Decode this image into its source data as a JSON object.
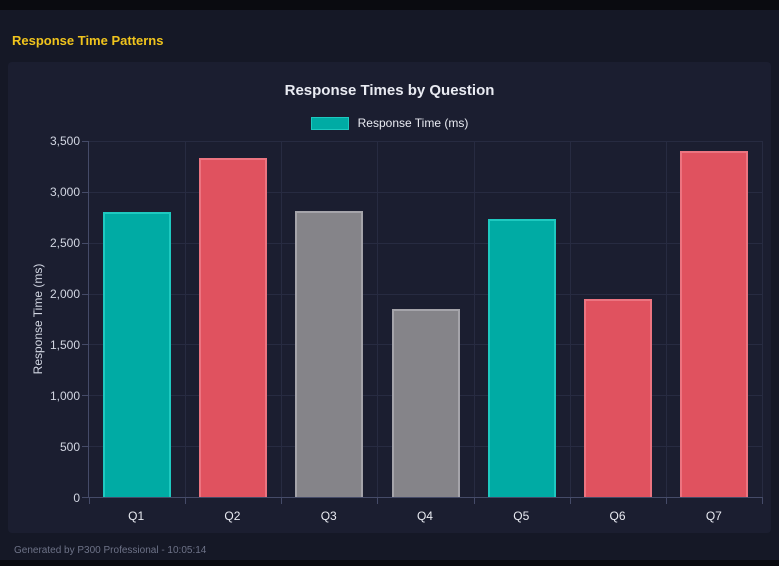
{
  "header": {
    "title": "Response Time Patterns"
  },
  "chart": {
    "title": "Response Times by Question",
    "legend_label": "Response Time (ms)",
    "y_axis_title": "Response Time (ms)"
  },
  "chart_data": {
    "type": "bar",
    "title": "Response Times by Question",
    "categories": [
      "Q1",
      "Q2",
      "Q3",
      "Q4",
      "Q5",
      "Q6",
      "Q7"
    ],
    "values": [
      2800,
      3330,
      2810,
      1845,
      2730,
      1945,
      3400
    ],
    "bar_colors": [
      "#00aba4",
      "#e0525f",
      "#858489",
      "#858489",
      "#00aba4",
      "#e0525f",
      "#e0525f"
    ],
    "bar_border_colors": [
      "#1ec9c0",
      "#ec7480",
      "#a5a4aa",
      "#a5a4aa",
      "#1ec9c0",
      "#ec7480",
      "#ec7480"
    ],
    "legend": [
      "Response Time (ms)"
    ],
    "legend_position": "top",
    "xlabel": "",
    "ylabel": "Response Time (ms)",
    "ylim": [
      0,
      3500
    ],
    "y_ticks": [
      0,
      500,
      1000,
      1500,
      2000,
      2500,
      3000,
      3500
    ],
    "y_tick_labels": [
      "0",
      "500",
      "1,000",
      "1,500",
      "2,000",
      "2,500",
      "3,000",
      "3,500"
    ],
    "grid": true
  },
  "footer": {
    "text": "Generated by P300 Professional - 10:05:14"
  },
  "colors": {
    "accent_yellow": "#f0c41d",
    "teal": "#00aba4",
    "red": "#e0525f",
    "gray": "#858489",
    "page_bg": "#151826",
    "card_bg": "#1b1e30"
  }
}
